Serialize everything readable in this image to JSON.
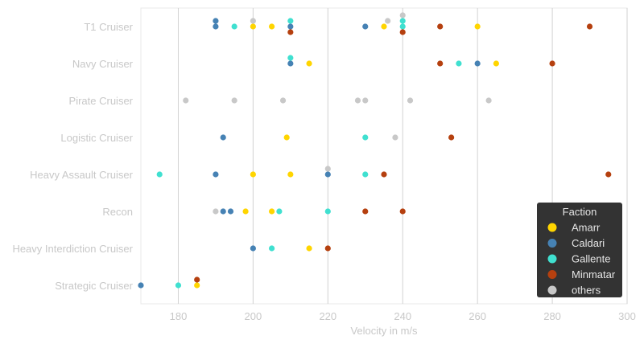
{
  "chart_data": {
    "type": "scatter",
    "xlabel": "Velocity in m/s",
    "xlim": [
      170,
      300
    ],
    "x_ticks": [
      180,
      200,
      220,
      240,
      260,
      280,
      300
    ],
    "categories": [
      "T1 Cruiser",
      "Navy Cruiser",
      "Pirate Cruiser",
      "Logistic Cruiser",
      "Heavy Assault Cruiser",
      "Recon",
      "Heavy Interdiction Cruiser",
      "Strategic Cruiser"
    ],
    "grid": "vertical",
    "legend": {
      "title": "Faction",
      "placement": "bottom-right",
      "entries": [
        "Amarr",
        "Caldari",
        "Gallente",
        "Minmatar",
        "others"
      ]
    },
    "colors": {
      "Amarr": "#ffd500",
      "Caldari": "#4682b4",
      "Gallente": "#40e0d0",
      "Minmatar": "#b5400f",
      "others": "#c8c8c8"
    },
    "series": [
      {
        "name": "Amarr",
        "points": [
          [
            "T1 Cruiser",
            200
          ],
          [
            "T1 Cruiser",
            205
          ],
          [
            "T1 Cruiser",
            235
          ],
          [
            "T1 Cruiser",
            260
          ],
          [
            "Navy Cruiser",
            215
          ],
          [
            "Navy Cruiser",
            265
          ],
          [
            "Logistic Cruiser",
            209
          ],
          [
            "Heavy Assault Cruiser",
            200
          ],
          [
            "Heavy Assault Cruiser",
            210
          ],
          [
            "Recon",
            198
          ],
          [
            "Recon",
            205
          ],
          [
            "Heavy Interdiction Cruiser",
            215
          ],
          [
            "Strategic Cruiser",
            185
          ]
        ]
      },
      {
        "name": "Caldari",
        "points": [
          [
            "T1 Cruiser",
            190
          ],
          [
            "T1 Cruiser",
            190
          ],
          [
            "T1 Cruiser",
            210
          ],
          [
            "T1 Cruiser",
            230
          ],
          [
            "Navy Cruiser",
            210
          ],
          [
            "Navy Cruiser",
            260
          ],
          [
            "Logistic Cruiser",
            192
          ],
          [
            "Heavy Assault Cruiser",
            190
          ],
          [
            "Heavy Assault Cruiser",
            220
          ],
          [
            "Recon",
            192
          ],
          [
            "Recon",
            194
          ],
          [
            "Heavy Interdiction Cruiser",
            200
          ],
          [
            "Strategic Cruiser",
            170
          ]
        ]
      },
      {
        "name": "Gallente",
        "points": [
          [
            "T1 Cruiser",
            195
          ],
          [
            "T1 Cruiser",
            210
          ],
          [
            "T1 Cruiser",
            240
          ],
          [
            "T1 Cruiser",
            240
          ],
          [
            "Navy Cruiser",
            210
          ],
          [
            "Navy Cruiser",
            255
          ],
          [
            "Logistic Cruiser",
            230
          ],
          [
            "Heavy Assault Cruiser",
            175
          ],
          [
            "Heavy Assault Cruiser",
            230
          ],
          [
            "Recon",
            207
          ],
          [
            "Recon",
            220
          ],
          [
            "Heavy Interdiction Cruiser",
            205
          ],
          [
            "Strategic Cruiser",
            180
          ]
        ]
      },
      {
        "name": "Minmatar",
        "points": [
          [
            "T1 Cruiser",
            210
          ],
          [
            "T1 Cruiser",
            240
          ],
          [
            "T1 Cruiser",
            250
          ],
          [
            "T1 Cruiser",
            290
          ],
          [
            "Navy Cruiser",
            250
          ],
          [
            "Navy Cruiser",
            280
          ],
          [
            "Logistic Cruiser",
            253
          ],
          [
            "Heavy Assault Cruiser",
            235
          ],
          [
            "Heavy Assault Cruiser",
            295
          ],
          [
            "Recon",
            230
          ],
          [
            "Recon",
            240
          ],
          [
            "Heavy Interdiction Cruiser",
            220
          ],
          [
            "Strategic Cruiser",
            185
          ]
        ]
      },
      {
        "name": "others",
        "points": [
          [
            "T1 Cruiser",
            200
          ],
          [
            "T1 Cruiser",
            236
          ],
          [
            "T1 Cruiser",
            240
          ],
          [
            "Pirate Cruiser",
            182
          ],
          [
            "Pirate Cruiser",
            195
          ],
          [
            "Pirate Cruiser",
            208
          ],
          [
            "Pirate Cruiser",
            228
          ],
          [
            "Pirate Cruiser",
            230
          ],
          [
            "Pirate Cruiser",
            242
          ],
          [
            "Pirate Cruiser",
            263
          ],
          [
            "Logistic Cruiser",
            238
          ],
          [
            "Heavy Assault Cruiser",
            220
          ],
          [
            "Recon",
            190
          ]
        ]
      }
    ]
  }
}
